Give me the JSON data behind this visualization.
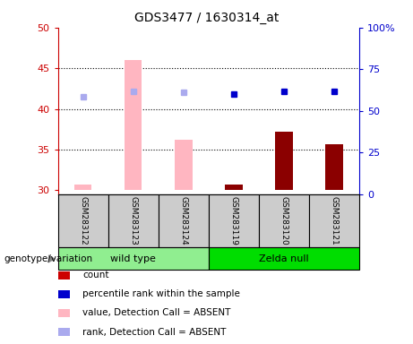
{
  "title": "GDS3477 / 1630314_at",
  "samples": [
    "GSM283122",
    "GSM283123",
    "GSM283124",
    "GSM283119",
    "GSM283120",
    "GSM283121"
  ],
  "ylim_left": [
    29.5,
    50
  ],
  "ylim_right": [
    0,
    100
  ],
  "yticks_left": [
    30,
    35,
    40,
    45,
    50
  ],
  "yticks_right": [
    0,
    25,
    50,
    75,
    100
  ],
  "ytick_labels_right": [
    "0",
    "25",
    "50",
    "75",
    "100%"
  ],
  "bar_bottom": 30,
  "bars_value": [
    30.7,
    46.0,
    36.2,
    30.7,
    37.2,
    35.7
  ],
  "bars_color": [
    "#FFB6C1",
    "#FFB6C1",
    "#FFB6C1",
    "#8B0000",
    "#8B0000",
    "#8B0000"
  ],
  "dots_rank": [
    41.5,
    42.2,
    42.0,
    41.8,
    42.2,
    42.2
  ],
  "dots_color": [
    "#AAAAEE",
    "#AAAAEE",
    "#AAAAEE",
    "#0000CC",
    "#0000CC",
    "#0000CC"
  ],
  "hgrid_vals": [
    35,
    40,
    45
  ],
  "left_axis_color": "#CC0000",
  "right_axis_color": "#0000CC",
  "group_wt_label": "wild type",
  "group_zn_label": "Zelda null",
  "group_wt_color": "#90EE90",
  "group_zn_color": "#00DD00",
  "sample_box_color": "#CCCCCC",
  "legend_items": [
    {
      "label": "count",
      "color": "#CC0000"
    },
    {
      "label": "percentile rank within the sample",
      "color": "#0000CC"
    },
    {
      "label": "value, Detection Call = ABSENT",
      "color": "#FFB6C1"
    },
    {
      "label": "rank, Detection Call = ABSENT",
      "color": "#AAAAEE"
    }
  ],
  "figsize": [
    4.61,
    3.84
  ],
  "dpi": 100
}
